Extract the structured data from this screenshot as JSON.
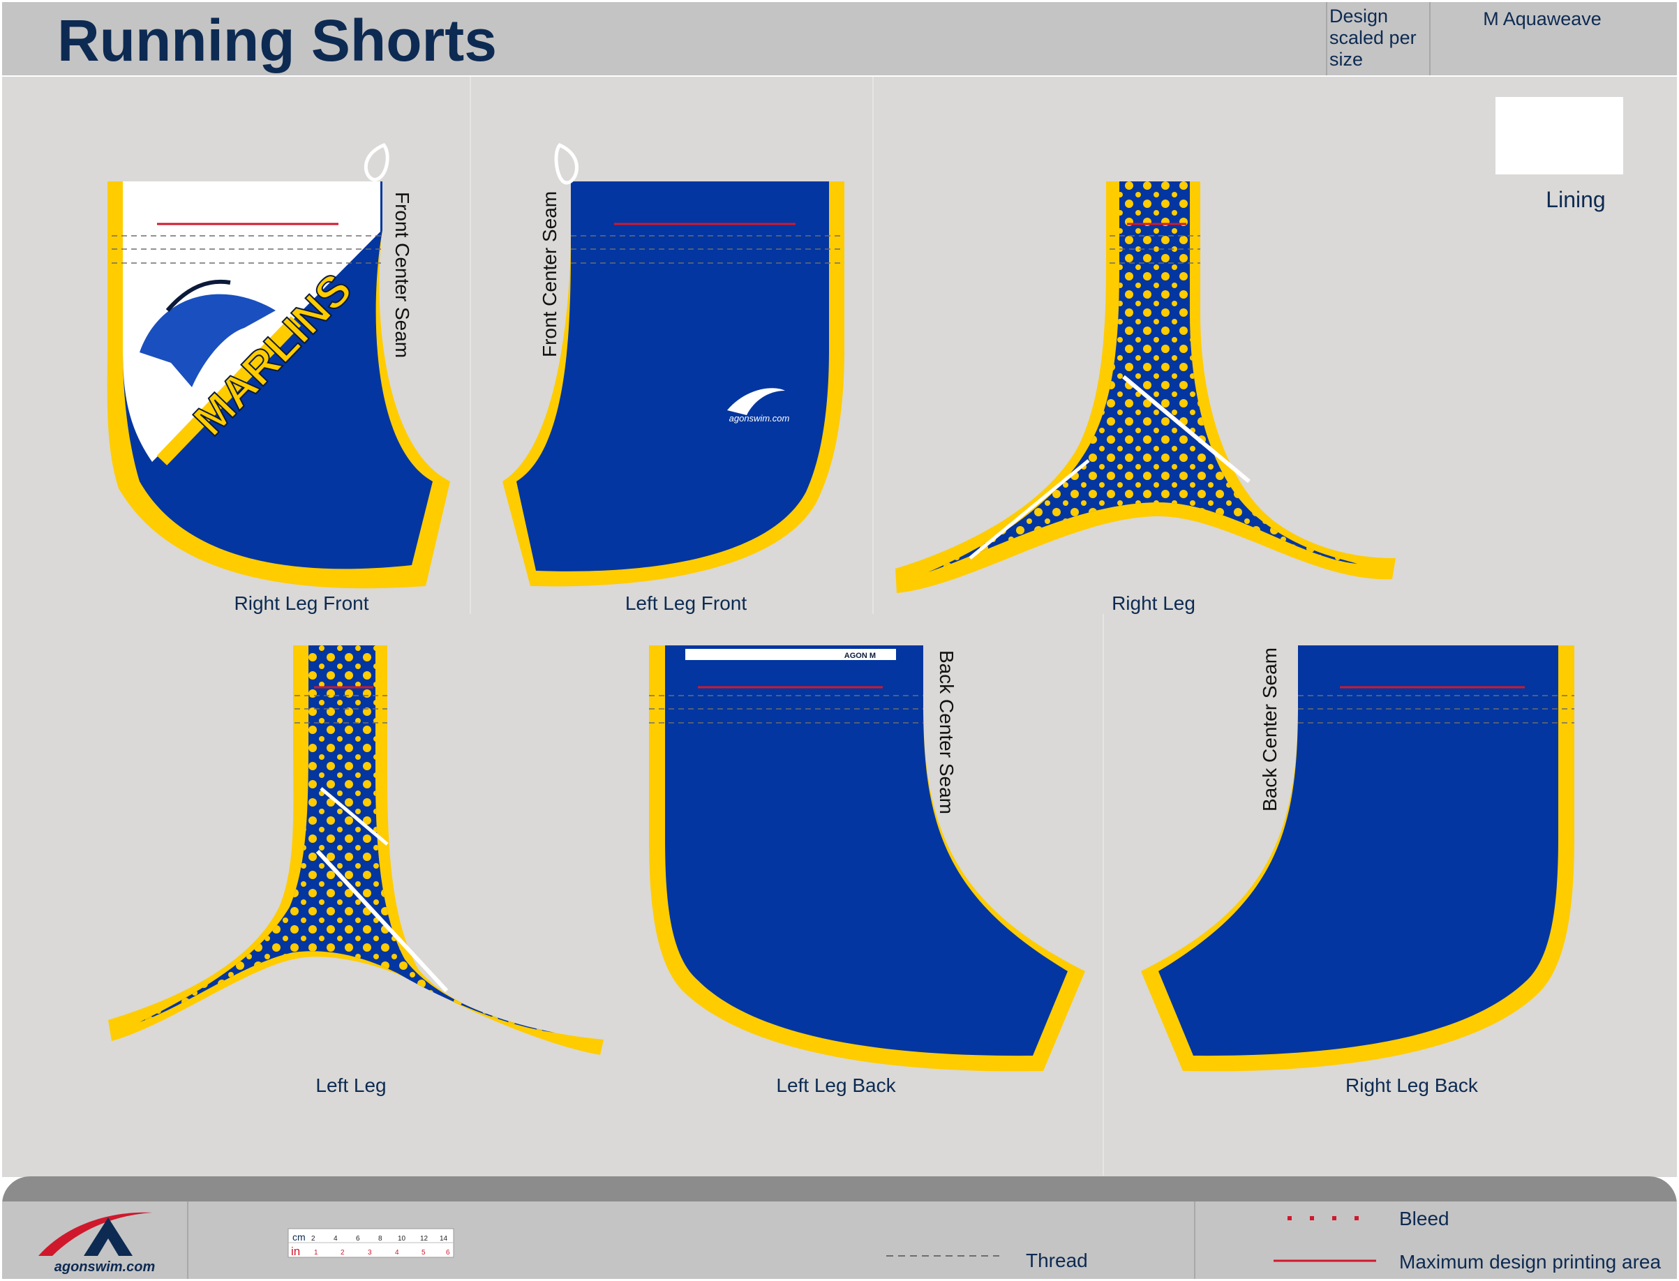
{
  "header": {
    "title": "Running Shorts",
    "scaled_note": "Design scaled per size",
    "material": "M Aquaweave"
  },
  "lining": {
    "label": "Lining"
  },
  "panels": {
    "right_leg_front": "Right Leg Front",
    "left_leg_front": "Left Leg Front",
    "right_leg": "Right Leg",
    "left_leg": "Left Leg",
    "left_leg_back": "Left Leg Back",
    "right_leg_back": "Right Leg Back"
  },
  "seams": {
    "front_center": "Front Center Seam",
    "back_center": "Back Center Seam"
  },
  "graphics": {
    "team_logo_text": "MARLINS",
    "agon_mark_text": "agonswim.com",
    "tag_text": "AGON M"
  },
  "footer": {
    "brand": "agonswim.com",
    "ruler": {
      "cm_label": "cm",
      "in_label": "in",
      "cm_ticks": [
        "2",
        "4",
        "6",
        "8",
        "10",
        "12",
        "14"
      ],
      "in_ticks": [
        "1",
        "2",
        "3",
        "4",
        "5",
        "6"
      ]
    },
    "legend": {
      "thread": "Thread",
      "bleed": "Bleed",
      "max_area": "Maximum design printing area"
    }
  },
  "colors": {
    "panel_blue": "#0336a0",
    "trim_yellow": "#ffcc00",
    "max_area_red": "#d0182c",
    "title_navy": "#0d2a52",
    "work_bg": "#dad9d7"
  }
}
